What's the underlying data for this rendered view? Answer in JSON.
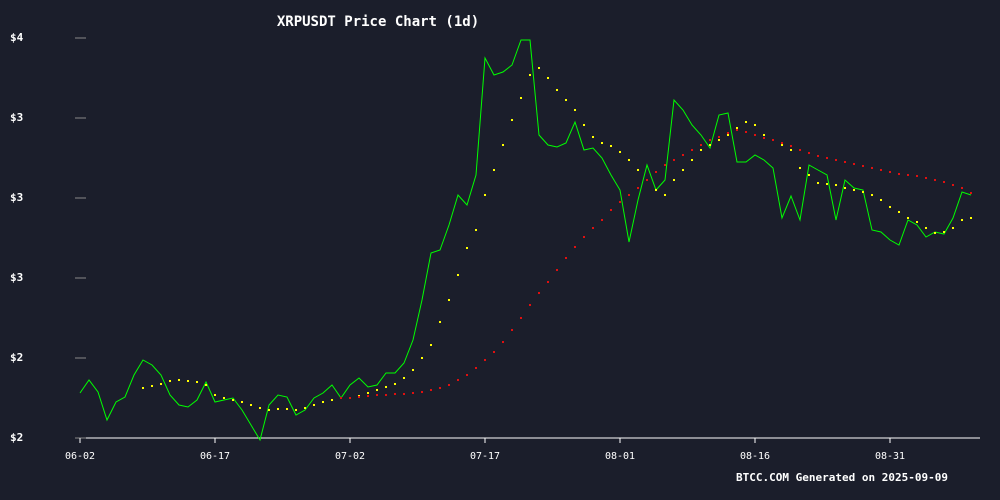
{
  "chart_data": {
    "type": "line",
    "title": "XRPUSDT Price Chart (1d)",
    "footer": "BTCC.COM Generated on 2025-09-09",
    "categories": [
      "06-02",
      null,
      null,
      null,
      null,
      null,
      null,
      null,
      null,
      null,
      null,
      null,
      null,
      null,
      null,
      "06-17",
      null,
      null,
      null,
      null,
      null,
      null,
      null,
      null,
      null,
      null,
      null,
      null,
      null,
      null,
      "07-02",
      null,
      null,
      null,
      null,
      null,
      null,
      null,
      null,
      null,
      null,
      null,
      null,
      null,
      null,
      "07-17",
      null,
      null,
      null,
      null,
      null,
      null,
      null,
      null,
      null,
      null,
      null,
      null,
      null,
      null,
      "08-01",
      null,
      null,
      null,
      null,
      null,
      null,
      null,
      null,
      null,
      null,
      null,
      null,
      null,
      null,
      "08-16",
      null,
      null,
      null,
      null,
      null,
      null,
      null,
      null,
      null,
      null,
      null,
      null,
      null,
      null,
      "08-31",
      null,
      null,
      null,
      null,
      null,
      null,
      null,
      null,
      null
    ],
    "ylim": [
      2.0,
      3.6
    ],
    "yticks": [
      {
        "value": 2.0,
        "label": "$2"
      },
      {
        "value": 2.32,
        "label": "$2"
      },
      {
        "value": 2.64,
        "label": "$3"
      },
      {
        "value": 2.96,
        "label": "$3"
      },
      {
        "value": 3.28,
        "label": "$3"
      },
      {
        "value": 3.6,
        "label": "$4"
      }
    ],
    "series": [
      {
        "style": "line",
        "color": "#00ff00",
        "values": [
          2.18,
          2.232,
          2.184,
          2.072,
          2.144,
          2.164,
          2.252,
          2.312,
          2.292,
          2.252,
          2.172,
          2.132,
          2.124,
          2.152,
          2.224,
          2.144,
          2.152,
          2.16,
          2.112,
          2.052,
          1.992,
          2.132,
          2.172,
          2.164,
          2.092,
          2.112,
          2.16,
          2.18,
          2.212,
          2.16,
          2.212,
          2.24,
          2.204,
          2.212,
          2.26,
          2.26,
          2.3,
          2.392,
          2.552,
          2.74,
          2.752,
          2.852,
          2.972,
          2.932,
          3.052,
          3.52,
          3.452,
          3.464,
          3.492,
          3.592,
          3.592,
          3.212,
          3.172,
          3.164,
          3.18,
          3.264,
          3.152,
          3.16,
          3.12,
          3.052,
          2.992,
          2.784,
          2.952,
          3.092,
          2.992,
          3.032,
          3.352,
          3.312,
          3.252,
          3.212,
          3.16,
          3.292,
          3.3,
          3.104,
          3.104,
          3.132,
          3.112,
          3.08,
          2.88,
          2.968,
          2.872,
          3.092,
          3.072,
          3.052,
          2.872,
          3.032,
          3.0,
          2.992,
          2.832,
          2.824,
          2.792,
          2.772,
          2.872,
          2.852,
          2.804,
          2.824,
          2.816,
          2.88,
          2.984,
          2.972
        ]
      },
      {
        "style": "dots",
        "color": "#ffff00",
        "values": [
          null,
          null,
          null,
          null,
          null,
          null,
          null,
          2.2,
          2.208,
          2.216,
          2.228,
          2.232,
          2.228,
          2.224,
          2.212,
          2.172,
          2.16,
          2.152,
          2.144,
          2.132,
          2.12,
          2.112,
          2.116,
          2.116,
          2.112,
          2.12,
          2.132,
          2.144,
          2.152,
          2.16,
          2.16,
          2.168,
          2.18,
          2.192,
          2.204,
          2.216,
          2.24,
          2.272,
          2.32,
          2.372,
          2.464,
          2.552,
          2.652,
          2.76,
          2.832,
          2.972,
          3.072,
          3.172,
          3.272,
          3.36,
          3.452,
          3.48,
          3.44,
          3.392,
          3.352,
          3.312,
          3.252,
          3.204,
          3.18,
          3.168,
          3.144,
          3.112,
          3.072,
          3.032,
          2.992,
          2.972,
          3.032,
          3.072,
          3.112,
          3.152,
          3.172,
          3.192,
          3.212,
          3.24,
          3.264,
          3.252,
          3.212,
          3.192,
          3.172,
          3.152,
          3.08,
          3.052,
          3.02,
          3.016,
          3.012,
          3.0,
          2.992,
          2.984,
          2.972,
          2.952,
          2.924,
          2.904,
          2.88,
          2.864,
          2.84,
          2.82,
          2.824,
          2.84,
          2.872,
          2.88
        ]
      },
      {
        "style": "dots",
        "color": "#e01010",
        "values": [
          null,
          null,
          null,
          null,
          null,
          null,
          null,
          null,
          null,
          null,
          null,
          null,
          null,
          null,
          null,
          null,
          null,
          null,
          null,
          null,
          null,
          null,
          null,
          null,
          null,
          null,
          null,
          null,
          null,
          2.16,
          2.16,
          2.164,
          2.168,
          2.172,
          2.172,
          2.176,
          2.176,
          2.18,
          2.184,
          2.192,
          2.2,
          2.212,
          2.232,
          2.252,
          2.28,
          2.312,
          2.344,
          2.384,
          2.432,
          2.48,
          2.532,
          2.58,
          2.624,
          2.672,
          2.72,
          2.764,
          2.804,
          2.84,
          2.872,
          2.912,
          2.944,
          2.972,
          3.0,
          3.032,
          3.064,
          3.092,
          3.112,
          3.132,
          3.152,
          3.172,
          3.192,
          3.204,
          3.22,
          3.232,
          3.224,
          3.212,
          3.2,
          3.192,
          3.18,
          3.168,
          3.152,
          3.14,
          3.128,
          3.12,
          3.112,
          3.104,
          3.096,
          3.088,
          3.08,
          3.072,
          3.064,
          3.056,
          3.052,
          3.048,
          3.04,
          3.032,
          3.024,
          3.012,
          3.0,
          2.98
        ]
      }
    ]
  }
}
